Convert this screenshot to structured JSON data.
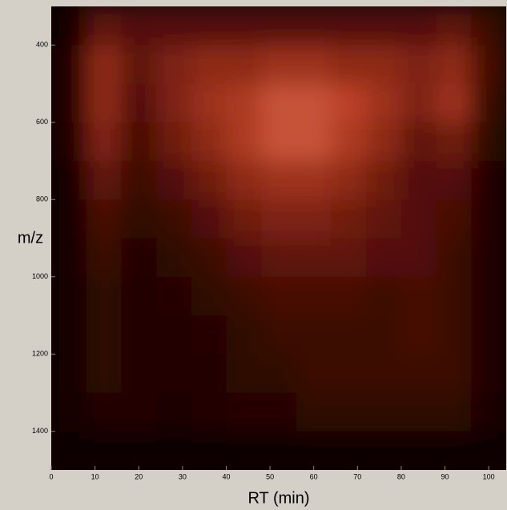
{
  "chart_data": {
    "type": "heatmap",
    "x_label": "RT (min)",
    "y_label": "m/z",
    "x": [
      4,
      12,
      20,
      28,
      36,
      44,
      52,
      60,
      68,
      76,
      84,
      92,
      100
    ],
    "y": [
      350,
      450,
      550,
      650,
      750,
      850,
      950,
      1050,
      1150,
      1250,
      1350,
      1450
    ],
    "values": [
      [
        0.05,
        0.35,
        0.3,
        0.3,
        0.3,
        0.3,
        0.3,
        0.3,
        0.3,
        0.3,
        0.3,
        0.35,
        0.2
      ],
      [
        0.1,
        0.5,
        0.35,
        0.45,
        0.5,
        0.5,
        0.55,
        0.55,
        0.5,
        0.5,
        0.45,
        0.5,
        0.25
      ],
      [
        0.1,
        0.5,
        0.3,
        0.45,
        0.55,
        0.6,
        0.7,
        0.7,
        0.65,
        0.55,
        0.45,
        0.55,
        0.2
      ],
      [
        0.1,
        0.45,
        0.25,
        0.4,
        0.5,
        0.6,
        0.7,
        0.7,
        0.6,
        0.5,
        0.35,
        0.4,
        0.15
      ],
      [
        0.05,
        0.35,
        0.2,
        0.3,
        0.4,
        0.5,
        0.55,
        0.55,
        0.5,
        0.4,
        0.3,
        0.3,
        0.1
      ],
      [
        0.05,
        0.25,
        0.15,
        0.2,
        0.3,
        0.4,
        0.45,
        0.45,
        0.4,
        0.35,
        0.3,
        0.25,
        0.1
      ],
      [
        0.05,
        0.2,
        0.1,
        0.15,
        0.2,
        0.3,
        0.35,
        0.35,
        0.35,
        0.3,
        0.3,
        0.2,
        0.1
      ],
      [
        0.05,
        0.15,
        0.1,
        0.12,
        0.15,
        0.2,
        0.25,
        0.25,
        0.25,
        0.2,
        0.25,
        0.2,
        0.1
      ],
      [
        0.05,
        0.15,
        0.1,
        0.1,
        0.12,
        0.15,
        0.2,
        0.2,
        0.2,
        0.2,
        0.25,
        0.2,
        0.1
      ],
      [
        0.05,
        0.15,
        0.1,
        0.1,
        0.1,
        0.15,
        0.15,
        0.2,
        0.2,
        0.2,
        0.2,
        0.2,
        0.1
      ],
      [
        0.05,
        0.1,
        0.1,
        0.08,
        0.1,
        0.12,
        0.12,
        0.15,
        0.15,
        0.15,
        0.15,
        0.15,
        0.08
      ],
      [
        0.02,
        0.02,
        0.02,
        0.02,
        0.02,
        0.02,
        0.02,
        0.02,
        0.02,
        0.02,
        0.02,
        0.02,
        0.02
      ]
    ],
    "colormap": [
      "#0a0101",
      "#5a1008",
      "#c0442a",
      "#ffd8b0"
    ],
    "xlim": [
      0,
      104
    ],
    "xticks": [
      0,
      10,
      20,
      30,
      40,
      50,
      60,
      70,
      80,
      90,
      100
    ],
    "ylim": [
      300,
      1500
    ],
    "yticks": [
      400,
      600,
      800,
      1000,
      1200,
      1400
    ],
    "y_inverted": true,
    "grid": false
  }
}
